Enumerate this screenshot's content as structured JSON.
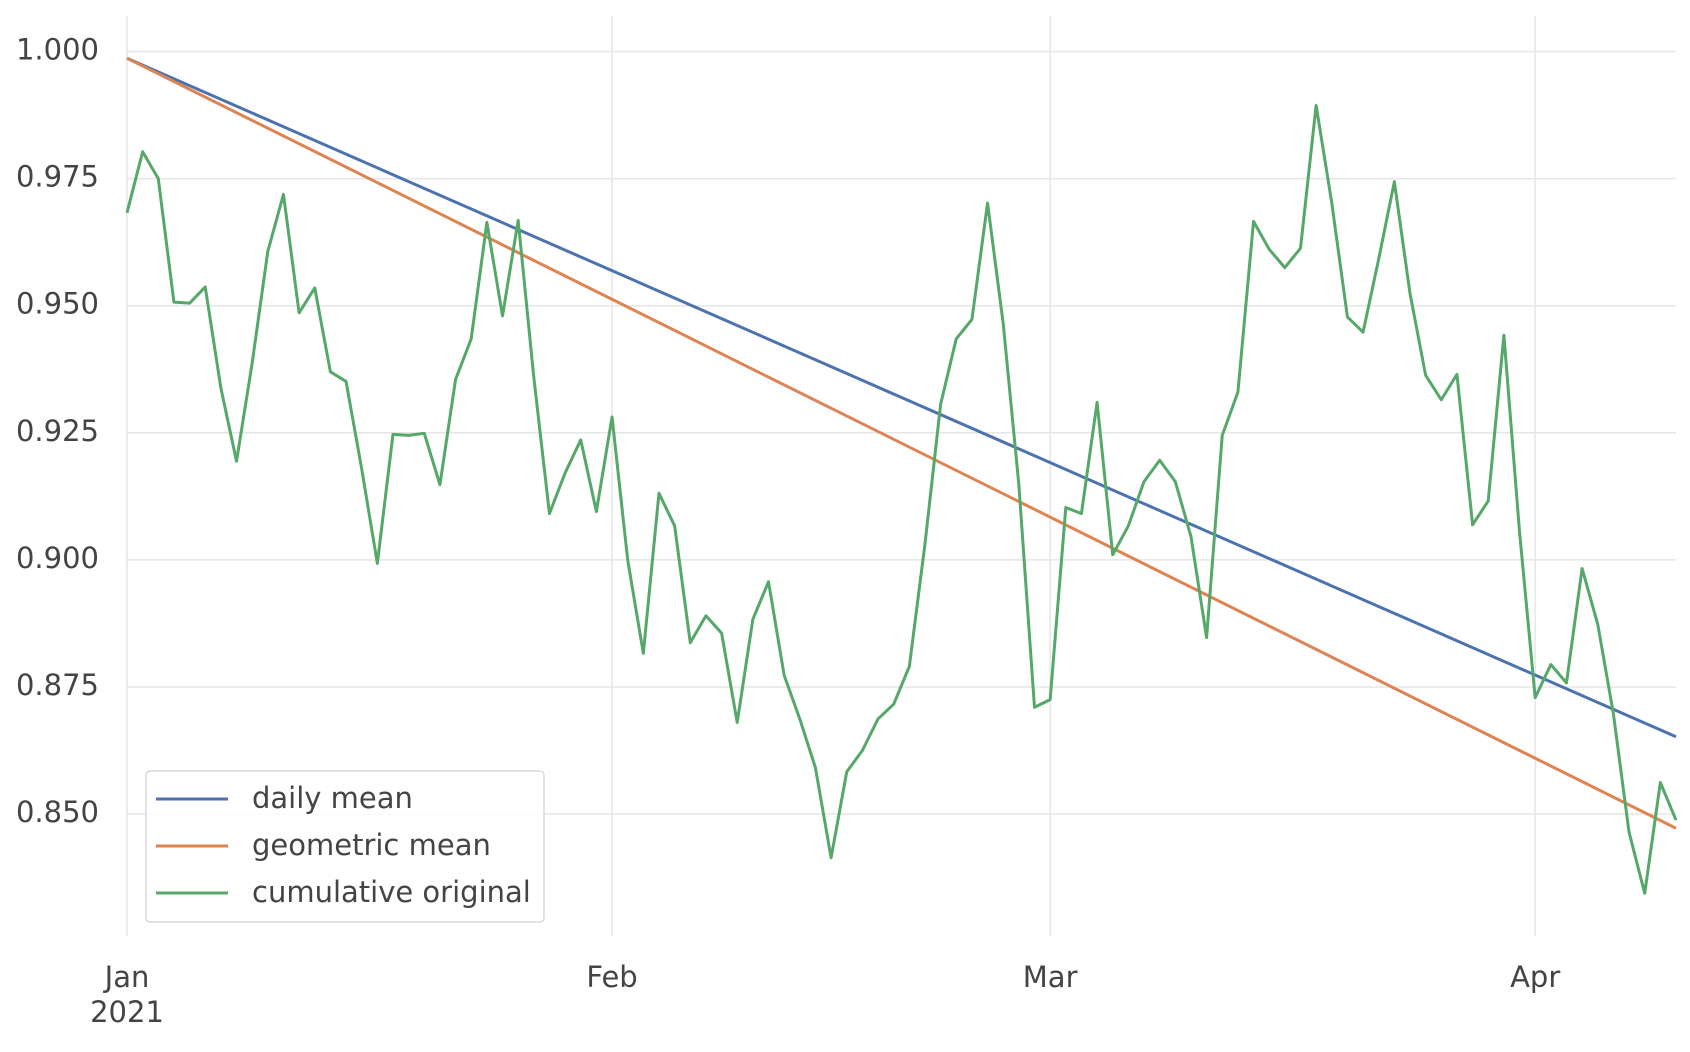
{
  "chart_data": {
    "type": "line",
    "xlim": [
      "2021-01-01",
      "2021-04-10"
    ],
    "xticks": [
      {
        "value": "2021-01-01",
        "label": "Jan"
      },
      {
        "value": "2021-02-01",
        "label": "Feb"
      },
      {
        "value": "2021-03-01",
        "label": "Mar"
      },
      {
        "value": "2021-04-01",
        "label": "Apr"
      }
    ],
    "x_offset_label": "2021",
    "ylim": [
      0.826,
      1.007
    ],
    "yticks": [
      {
        "value": 0.85,
        "label": "0.850"
      },
      {
        "value": 0.875,
        "label": "0.875"
      },
      {
        "value": 0.9,
        "label": "0.900"
      },
      {
        "value": 0.925,
        "label": "0.925"
      },
      {
        "value": 0.95,
        "label": "0.950"
      },
      {
        "value": 0.975,
        "label": "0.975"
      },
      {
        "value": 1.0,
        "label": "1.000"
      }
    ],
    "grid": true,
    "legend": "lower left",
    "series": [
      {
        "name": "daily mean",
        "color": "#4c72b0",
        "x": [
          "2021-01-01",
          "2021-04-10"
        ],
        "values": [
          0.9987,
          0.8652
        ]
      },
      {
        "name": "geometric mean",
        "color": "#dd8452",
        "x": [
          "2021-01-01",
          "2021-04-10"
        ],
        "values": [
          0.9987,
          0.8472
        ]
      },
      {
        "name": "cumulative original",
        "color": "#55a868",
        "x": [
          "2021-01-01",
          "2021-01-02",
          "2021-01-03",
          "2021-01-04",
          "2021-01-05",
          "2021-01-06",
          "2021-01-07",
          "2021-01-08",
          "2021-01-09",
          "2021-01-10",
          "2021-01-11",
          "2021-01-12",
          "2021-01-13",
          "2021-01-14",
          "2021-01-15",
          "2021-01-16",
          "2021-01-17",
          "2021-01-18",
          "2021-01-19",
          "2021-01-20",
          "2021-01-21",
          "2021-01-22",
          "2021-01-23",
          "2021-01-24",
          "2021-01-25",
          "2021-01-26",
          "2021-01-27",
          "2021-01-28",
          "2021-01-29",
          "2021-01-30",
          "2021-01-31",
          "2021-02-01",
          "2021-02-02",
          "2021-02-03",
          "2021-02-04",
          "2021-02-05",
          "2021-02-06",
          "2021-02-07",
          "2021-02-08",
          "2021-02-09",
          "2021-02-10",
          "2021-02-11",
          "2021-02-12",
          "2021-02-13",
          "2021-02-14",
          "2021-02-15",
          "2021-02-16",
          "2021-02-17",
          "2021-02-18",
          "2021-02-19",
          "2021-02-20",
          "2021-02-21",
          "2021-02-22",
          "2021-02-23",
          "2021-02-24",
          "2021-02-25",
          "2021-02-26",
          "2021-02-27",
          "2021-02-28",
          "2021-03-01",
          "2021-03-02",
          "2021-03-03",
          "2021-03-04",
          "2021-03-05",
          "2021-03-06",
          "2021-03-07",
          "2021-03-08",
          "2021-03-09",
          "2021-03-10",
          "2021-03-11",
          "2021-03-12",
          "2021-03-13",
          "2021-03-14",
          "2021-03-15",
          "2021-03-16",
          "2021-03-17",
          "2021-03-18",
          "2021-03-19",
          "2021-03-20",
          "2021-03-21",
          "2021-03-22",
          "2021-03-23",
          "2021-03-24",
          "2021-03-25",
          "2021-03-26",
          "2021-03-27",
          "2021-03-28",
          "2021-03-29",
          "2021-03-30",
          "2021-03-31",
          "2021-04-01",
          "2021-04-02",
          "2021-04-03",
          "2021-04-04",
          "2021-04-05",
          "2021-04-06",
          "2021-04-07",
          "2021-04-08",
          "2021-04-09",
          "2021-04-10"
        ],
        "values": [
          0.9683,
          0.9803,
          0.975,
          0.9507,
          0.9505,
          0.9537,
          0.9338,
          0.9194,
          0.9387,
          0.9607,
          0.9719,
          0.9486,
          0.9535,
          0.937,
          0.9351,
          0.9179,
          0.8993,
          0.9247,
          0.9245,
          0.9249,
          0.9148,
          0.9355,
          0.9435,
          0.9664,
          0.948,
          0.9668,
          0.9359,
          0.9091,
          0.9171,
          0.9236,
          0.9095,
          0.9281,
          0.9,
          0.8816,
          0.9131,
          0.9067,
          0.8837,
          0.889,
          0.8856,
          0.868,
          0.8883,
          0.8957,
          0.8773,
          0.8687,
          0.8591,
          0.8414,
          0.8583,
          0.8625,
          0.8687,
          0.8716,
          0.879,
          0.9031,
          0.9306,
          0.9435,
          0.9473,
          0.9702,
          0.9465,
          0.9148,
          0.871,
          0.8725,
          0.9103,
          0.9091,
          0.931,
          0.901,
          0.9067,
          0.9154,
          0.9196,
          0.9154,
          0.9046,
          0.8847,
          0.9245,
          0.933,
          0.9666,
          0.9611,
          0.9575,
          0.9613,
          0.9894,
          0.9702,
          0.9478,
          0.9448,
          0.9592,
          0.9744,
          0.9524,
          0.9363,
          0.9315,
          0.9365,
          0.9069,
          0.9116,
          0.9442,
          0.9055,
          0.8729,
          0.8794,
          0.8758,
          0.8983,
          0.8873,
          0.8697,
          0.8464,
          0.8344,
          0.8562,
          0.8488
        ]
      }
    ]
  }
}
